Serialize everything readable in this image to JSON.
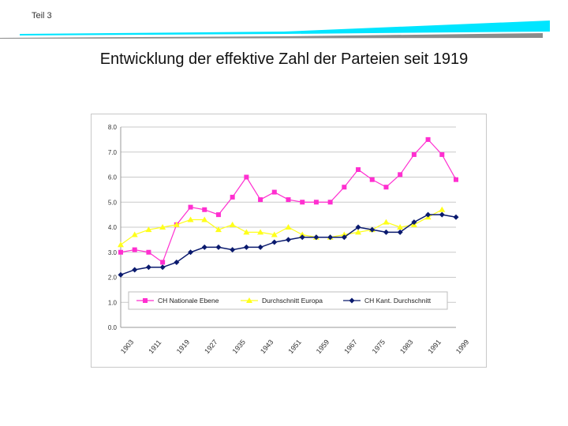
{
  "section_label": "Teil 3",
  "slide_title": "Entwicklung der effektive Zahl der Parteien seit 1919",
  "colors": {
    "header_cyan": "#00e5ff",
    "header_gray": "#8c8c8c",
    "series_national": "#ff2fd0",
    "series_europe": "#ffff1a",
    "series_cantonal": "#0a1a6e"
  },
  "chart_data": {
    "type": "line",
    "title": "",
    "xlabel": "",
    "ylabel": "",
    "ylim": [
      0,
      8
    ],
    "y_ticks": [
      "0.0",
      "1.0",
      "2.0",
      "3.0",
      "4.0",
      "5.0",
      "6.0",
      "7.0",
      "8.0"
    ],
    "x_tick_labels": [
      "1903",
      "1911",
      "1919",
      "1927",
      "1935",
      "1943",
      "1951",
      "1959",
      "1967",
      "1975",
      "1983",
      "1991",
      "1999"
    ],
    "x": [
      1903,
      1907,
      1911,
      1915,
      1919,
      1923,
      1927,
      1931,
      1935,
      1939,
      1943,
      1947,
      1951,
      1955,
      1959,
      1963,
      1967,
      1971,
      1975,
      1979,
      1983,
      1987,
      1991,
      1995,
      1999
    ],
    "grid": "horizontal",
    "legend_position": "bottom",
    "series": [
      {
        "name": "CH Nationale Ebene",
        "color": "#ff2fd0",
        "marker": "square",
        "x": [
          1903,
          1907,
          1911,
          1915,
          1919,
          1923,
          1927,
          1931,
          1935,
          1939,
          1943,
          1947,
          1951,
          1955,
          1959,
          1963,
          1967,
          1971,
          1975,
          1979,
          1983,
          1987,
          1991,
          1995,
          1999
        ],
        "values": [
          3.0,
          3.1,
          3.0,
          2.6,
          4.1,
          4.8,
          4.7,
          4.5,
          5.2,
          6.0,
          5.1,
          5.4,
          5.1,
          5.0,
          5.0,
          5.0,
          5.6,
          6.3,
          5.9,
          5.6,
          6.1,
          6.9,
          7.5,
          6.9,
          5.9
        ]
      },
      {
        "name": "Durchschnitt Europa",
        "color": "#ffff1a",
        "marker": "triangle",
        "x": [
          1903,
          1907,
          1911,
          1915,
          1919,
          1923,
          1927,
          1931,
          1935,
          1939,
          1943,
          1947,
          1951,
          1955,
          1959,
          1963,
          1967,
          1971,
          1975,
          1979,
          1983,
          1987,
          1991,
          1995
        ],
        "values": [
          3.3,
          3.7,
          3.9,
          4.0,
          4.1,
          4.3,
          4.3,
          3.9,
          4.1,
          3.8,
          3.8,
          3.7,
          4.0,
          3.7,
          3.6,
          3.6,
          3.7,
          3.8,
          3.9,
          4.2,
          4.0,
          4.1,
          4.4,
          4.7
        ]
      },
      {
        "name": "CH Kant. Durchschnitt",
        "color": "#0a1a6e",
        "marker": "diamond",
        "x": [
          1903,
          1907,
          1911,
          1915,
          1919,
          1923,
          1927,
          1931,
          1935,
          1939,
          1943,
          1947,
          1951,
          1955,
          1959,
          1963,
          1967,
          1971,
          1975,
          1979,
          1983,
          1987,
          1991,
          1995,
          1999
        ],
        "values": [
          2.1,
          2.3,
          2.4,
          2.4,
          2.6,
          3.0,
          3.2,
          3.2,
          3.1,
          3.2,
          3.2,
          3.4,
          3.5,
          3.6,
          3.6,
          3.6,
          3.6,
          4.0,
          3.9,
          3.8,
          3.8,
          4.2,
          4.5,
          4.5,
          4.4
        ]
      }
    ]
  }
}
